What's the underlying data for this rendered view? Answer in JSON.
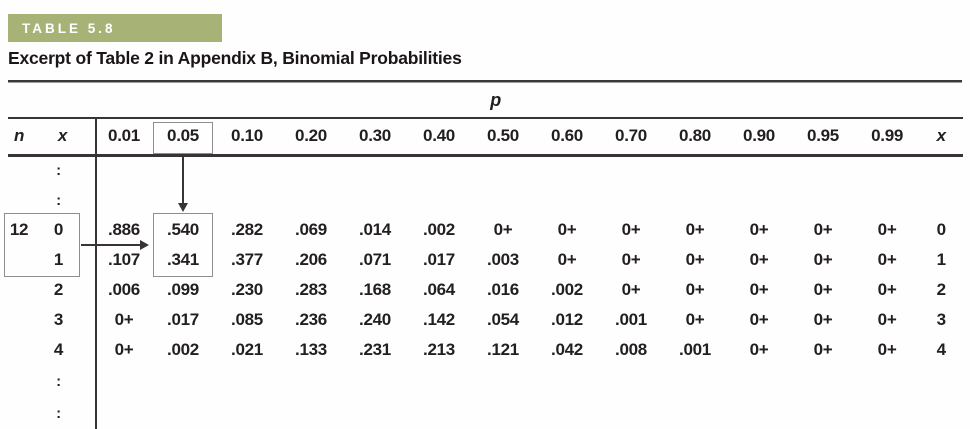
{
  "banner": {
    "label": "TABLE 5.8",
    "bg_color": "#a7b376"
  },
  "subtitle": "Excerpt of Table 2 in Appendix B, Binomial Probabilities",
  "table": {
    "p_group_label": "p",
    "col_n": "n",
    "col_x": "x",
    "p_columns": [
      "0.01",
      "0.05",
      "0.10",
      "0.20",
      "0.30",
      "0.40",
      "0.50",
      "0.60",
      "0.70",
      "0.80",
      "0.90",
      "0.95",
      "0.99"
    ],
    "col_x_right": "x",
    "highlight_column": "0.05",
    "highlight_color": "#8b4d63",
    "n_value": "12",
    "ellipsis": ":",
    "rows": [
      {
        "n": "12",
        "x": "0",
        "values": [
          ".886",
          ".540",
          ".282",
          ".069",
          ".014",
          ".002",
          "0+",
          "0+",
          "0+",
          "0+",
          "0+",
          "0+",
          "0+"
        ],
        "x_right": "0"
      },
      {
        "n": "",
        "x": "1",
        "values": [
          ".107",
          ".341",
          ".377",
          ".206",
          ".071",
          ".017",
          ".003",
          "0+",
          "0+",
          "0+",
          "0+",
          "0+",
          "0+"
        ],
        "x_right": "1"
      },
      {
        "n": "",
        "x": "2",
        "values": [
          ".006",
          ".099",
          ".230",
          ".283",
          ".168",
          ".064",
          ".016",
          ".002",
          "0+",
          "0+",
          "0+",
          "0+",
          "0+"
        ],
        "x_right": "2"
      },
      {
        "n": "",
        "x": "3",
        "values": [
          "0+",
          ".017",
          ".085",
          ".236",
          ".240",
          ".142",
          ".054",
          ".012",
          ".001",
          "0+",
          "0+",
          "0+",
          "0+"
        ],
        "x_right": "3"
      },
      {
        "n": "",
        "x": "4",
        "values": [
          "0+",
          ".002",
          ".021",
          ".133",
          ".231",
          ".213",
          ".121",
          ".042",
          ".008",
          ".001",
          "0+",
          "0+",
          "0+"
        ],
        "x_right": "4"
      }
    ],
    "annotations": {
      "boxed_header_value": "0.05",
      "boxed_n_x_values": [
        "12",
        "0",
        "1"
      ],
      "boxed_probability_values": [
        ".540",
        ".341"
      ]
    }
  }
}
